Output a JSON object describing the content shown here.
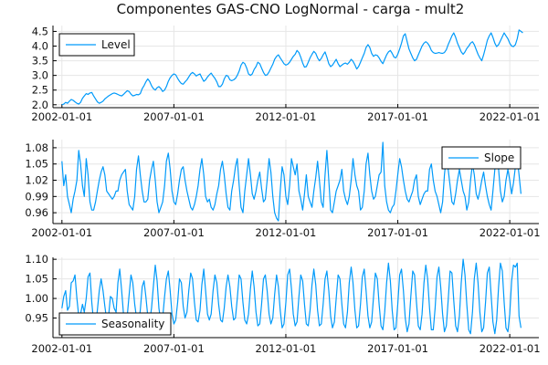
{
  "chart_data": {
    "title": "Componentes GAS-CNO LogNormal - carga - mult2",
    "xlim": [
      2001.6,
      2023.3
    ],
    "x_ticks": [
      2002,
      2007,
      2012,
      2017,
      2022
    ],
    "x_tick_labels": [
      "2002-01-01",
      "2007-01-01",
      "2012-01-01",
      "2017-01-01",
      "2022-01-01"
    ],
    "series_color": "#009AFA",
    "x_start": 2002.0,
    "x_step": 0.0833333,
    "grid": true,
    "panels": [
      {
        "type": "line",
        "legend": "Level",
        "legend_position": "top-left",
        "ylim": [
          1.9,
          4.7
        ],
        "y_ticks": [
          2.0,
          2.5,
          3.0,
          3.5,
          4.0,
          4.5
        ],
        "y_tick_labels": [
          "2.0",
          "2.5",
          "3.0",
          "3.5",
          "4.0",
          "4.5"
        ],
        "values": [
          2.0,
          2.02,
          2.08,
          2.05,
          2.12,
          2.18,
          2.15,
          2.1,
          2.05,
          2.02,
          2.08,
          2.22,
          2.3,
          2.38,
          2.35,
          2.4,
          2.42,
          2.3,
          2.2,
          2.1,
          2.05,
          2.08,
          2.12,
          2.2,
          2.25,
          2.3,
          2.34,
          2.38,
          2.4,
          2.38,
          2.35,
          2.32,
          2.3,
          2.35,
          2.42,
          2.48,
          2.45,
          2.36,
          2.3,
          2.32,
          2.35,
          2.34,
          2.38,
          2.55,
          2.65,
          2.78,
          2.88,
          2.8,
          2.65,
          2.55,
          2.5,
          2.58,
          2.62,
          2.55,
          2.45,
          2.5,
          2.62,
          2.8,
          2.92,
          3.0,
          3.05,
          3.02,
          2.9,
          2.8,
          2.72,
          2.7,
          2.78,
          2.85,
          2.95,
          3.05,
          3.1,
          3.05,
          2.98,
          3.02,
          3.05,
          2.92,
          2.8,
          2.85,
          2.95,
          3.02,
          3.08,
          2.98,
          2.9,
          2.78,
          2.62,
          2.62,
          2.7,
          2.88,
          3.0,
          2.98,
          2.85,
          2.82,
          2.85,
          2.9,
          3.0,
          3.15,
          3.35,
          3.45,
          3.4,
          3.25,
          3.05,
          3.0,
          3.05,
          3.2,
          3.3,
          3.45,
          3.4,
          3.25,
          3.1,
          3.0,
          3.02,
          3.12,
          3.25,
          3.38,
          3.55,
          3.65,
          3.7,
          3.6,
          3.5,
          3.4,
          3.35,
          3.38,
          3.45,
          3.55,
          3.65,
          3.72,
          3.85,
          3.78,
          3.62,
          3.42,
          3.28,
          3.3,
          3.45,
          3.6,
          3.72,
          3.82,
          3.75,
          3.6,
          3.5,
          3.58,
          3.7,
          3.8,
          3.62,
          3.4,
          3.3,
          3.35,
          3.45,
          3.55,
          3.4,
          3.3,
          3.35,
          3.4,
          3.42,
          3.38,
          3.45,
          3.55,
          3.48,
          3.36,
          3.22,
          3.3,
          3.45,
          3.6,
          3.75,
          3.95,
          4.05,
          3.95,
          3.75,
          3.65,
          3.7,
          3.68,
          3.6,
          3.48,
          3.4,
          3.55,
          3.7,
          3.8,
          3.85,
          3.75,
          3.62,
          3.6,
          3.72,
          3.9,
          4.1,
          4.35,
          4.42,
          4.15,
          3.9,
          3.75,
          3.6,
          3.5,
          3.55,
          3.7,
          3.85,
          4.0,
          4.1,
          4.15,
          4.1,
          4.0,
          3.85,
          3.78,
          3.75,
          3.76,
          3.78,
          3.76,
          3.75,
          3.78,
          3.88,
          4.05,
          4.2,
          4.35,
          4.45,
          4.3,
          4.1,
          3.95,
          3.8,
          3.72,
          3.8,
          3.92,
          4.0,
          4.1,
          4.15,
          4.05,
          3.88,
          3.72,
          3.6,
          3.5,
          3.7,
          3.95,
          4.2,
          4.35,
          4.45,
          4.3,
          4.1,
          3.98,
          4.05,
          4.18,
          4.32,
          4.45,
          4.35,
          4.25,
          4.1,
          4.0,
          3.98,
          4.05,
          4.25,
          4.55,
          4.5,
          4.45
        ]
      },
      {
        "type": "line",
        "legend": "Slope",
        "legend_position": "top-right",
        "ylim": [
          0.94,
          1.095
        ],
        "y_ticks": [
          0.96,
          0.99,
          1.02,
          1.05,
          1.08
        ],
        "y_tick_labels": [
          "0.96",
          "0.99",
          "1.02",
          "1.05",
          "1.08"
        ],
        "values": [
          1.055,
          1.01,
          1.03,
          0.99,
          0.975,
          0.96,
          0.985,
          1.0,
          1.02,
          1.075,
          1.05,
          1.01,
          0.99,
          1.06,
          1.03,
          0.98,
          0.965,
          0.965,
          0.98,
          1.0,
          1.02,
          1.035,
          1.045,
          1.03,
          1.0,
          0.995,
          0.99,
          0.985,
          0.99,
          1.0,
          1.0,
          1.02,
          1.03,
          1.035,
          1.04,
          1.0,
          0.975,
          0.97,
          0.965,
          0.99,
          1.04,
          1.065,
          1.03,
          1.0,
          0.98,
          0.98,
          0.985,
          1.02,
          1.04,
          1.055,
          1.02,
          0.98,
          0.96,
          0.97,
          0.98,
          1.01,
          1.055,
          1.07,
          1.04,
          1.0,
          0.98,
          0.975,
          0.995,
          1.02,
          1.04,
          1.045,
          1.02,
          1.0,
          0.985,
          0.97,
          0.965,
          0.975,
          0.99,
          1.01,
          1.04,
          1.06,
          1.03,
          0.99,
          0.98,
          0.985,
          0.97,
          0.965,
          0.975,
          0.995,
          1.01,
          1.04,
          1.055,
          1.03,
          0.995,
          0.97,
          0.965,
          1.0,
          1.02,
          1.045,
          1.06,
          1.01,
          0.97,
          0.96,
          1.0,
          1.03,
          1.06,
          1.03,
          0.995,
          0.985,
          1.0,
          1.02,
          1.035,
          1.005,
          0.98,
          0.985,
          1.02,
          1.06,
          1.035,
          0.99,
          0.96,
          0.95,
          0.945,
          1.0,
          1.045,
          1.03,
          0.99,
          0.975,
          1.01,
          1.06,
          1.045,
          1.03,
          1.05,
          1.0,
          0.985,
          0.965,
          0.995,
          1.03,
          0.99,
          0.98,
          0.97,
          1.0,
          1.025,
          1.055,
          1.02,
          0.98,
          0.97,
          1.03,
          1.075,
          1.02,
          0.965,
          0.96,
          0.98,
          1.0,
          1.01,
          1.02,
          1.04,
          1.0,
          0.985,
          0.975,
          0.99,
          1.02,
          1.06,
          1.03,
          1.01,
          1.0,
          0.965,
          0.97,
          1.0,
          1.05,
          1.07,
          1.03,
          1.0,
          0.985,
          0.99,
          1.01,
          1.03,
          1.035,
          1.09,
          1.01,
          0.98,
          0.965,
          0.96,
          0.97,
          0.975,
          1.0,
          1.03,
          1.06,
          1.045,
          1.02,
          1.0,
          0.985,
          0.98,
          0.99,
          1.0,
          1.02,
          1.03,
          0.99,
          0.975,
          0.985,
          0.995,
          1.0,
          1.0,
          1.04,
          1.05,
          1.02,
          1.0,
          0.99,
          0.975,
          0.96,
          0.98,
          1.03,
          1.065,
          1.04,
          1.01,
          0.98,
          0.975,
          0.995,
          1.02,
          1.04,
          1.02,
          1.0,
          0.99,
          0.965,
          0.98,
          1.02,
          1.05,
          1.03,
          0.995,
          0.985,
          1.0,
          1.02,
          1.035,
          1.01,
          0.99,
          0.975,
          0.965,
          1.0,
          1.04,
          1.06,
          1.04,
          1.0,
          0.98,
          0.99,
          1.02,
          1.04,
          1.02,
          0.995,
          1.015,
          1.045,
          1.06,
          1.03,
          0.995
        ]
      },
      {
        "type": "line",
        "legend": "Seasonality",
        "legend_position": "bottom-left",
        "ylim": [
          0.9,
          1.105
        ],
        "y_ticks": [
          0.95,
          1.0,
          1.05,
          1.1
        ],
        "y_tick_labels": [
          "0.95",
          "1.00",
          "1.05",
          "1.10"
        ],
        "values": [
          0.975,
          1.005,
          1.02,
          0.97,
          0.98,
          1.04,
          1.045,
          1.06,
          1.0,
          0.955,
          0.96,
          0.985,
          0.965,
          1.0,
          1.055,
          1.065,
          0.99,
          0.94,
          0.93,
          0.97,
          1.02,
          1.05,
          1.02,
          0.98,
          0.945,
          0.955,
          1.005,
          1.0,
          0.975,
          0.965,
          1.04,
          1.075,
          1.02,
          0.96,
          0.94,
          0.955,
          1.01,
          1.06,
          1.04,
          0.985,
          0.95,
          0.935,
          0.97,
          1.03,
          1.045,
          1.005,
          0.955,
          0.94,
          0.975,
          1.03,
          1.085,
          1.045,
          0.975,
          0.94,
          0.95,
          1.005,
          1.05,
          1.07,
          1.02,
          0.96,
          0.935,
          0.945,
          0.99,
          1.05,
          1.04,
          0.98,
          0.95,
          0.965,
          1.02,
          1.065,
          1.05,
          0.99,
          0.945,
          0.94,
          0.97,
          1.035,
          1.075,
          1.02,
          0.96,
          0.945,
          0.96,
          1.02,
          1.06,
          1.04,
          0.985,
          0.945,
          0.94,
          0.975,
          1.03,
          1.06,
          1.03,
          0.98,
          0.945,
          0.95,
          1.0,
          1.06,
          1.05,
          0.99,
          0.945,
          0.935,
          0.96,
          1.025,
          1.07,
          1.03,
          0.965,
          0.93,
          0.935,
          0.985,
          1.05,
          1.06,
          1.02,
          0.96,
          0.935,
          0.95,
          1.01,
          1.06,
          1.03,
          0.97,
          0.925,
          0.935,
          0.99,
          1.06,
          1.075,
          1.025,
          0.96,
          0.93,
          0.94,
          1.005,
          1.06,
          1.045,
          0.985,
          0.935,
          0.93,
          0.97,
          1.035,
          1.075,
          1.035,
          0.97,
          0.93,
          0.935,
          0.985,
          1.05,
          1.07,
          1.02,
          0.955,
          0.925,
          0.94,
          1.0,
          1.06,
          1.05,
          0.985,
          0.935,
          0.925,
          0.965,
          1.04,
          1.08,
          1.04,
          0.97,
          0.925,
          0.93,
          0.985,
          1.055,
          1.075,
          1.02,
          0.955,
          0.925,
          0.94,
          1.005,
          1.065,
          1.05,
          0.985,
          0.93,
          0.92,
          0.965,
          1.04,
          1.09,
          1.045,
          0.97,
          0.92,
          0.925,
          0.985,
          1.06,
          1.075,
          1.02,
          0.95,
          0.915,
          0.935,
          1.005,
          1.07,
          1.06,
          0.99,
          0.93,
          0.92,
          0.96,
          1.04,
          1.085,
          1.05,
          0.975,
          0.92,
          0.92,
          0.975,
          1.055,
          1.08,
          1.03,
          0.96,
          0.915,
          0.93,
          0.995,
          1.07,
          1.065,
          0.995,
          0.93,
          0.915,
          0.955,
          1.04,
          1.1,
          1.06,
          0.985,
          0.92,
          0.91,
          0.965,
          1.05,
          1.09,
          1.04,
          0.965,
          0.915,
          0.925,
          0.99,
          1.065,
          1.08,
          1.01,
          0.94,
          0.91,
          0.945,
          1.03,
          1.09,
          1.07,
          0.99,
          0.925,
          0.915,
          0.96,
          1.045,
          1.085,
          1.08,
          1.09,
          0.955,
          0.925
        ]
      }
    ]
  }
}
